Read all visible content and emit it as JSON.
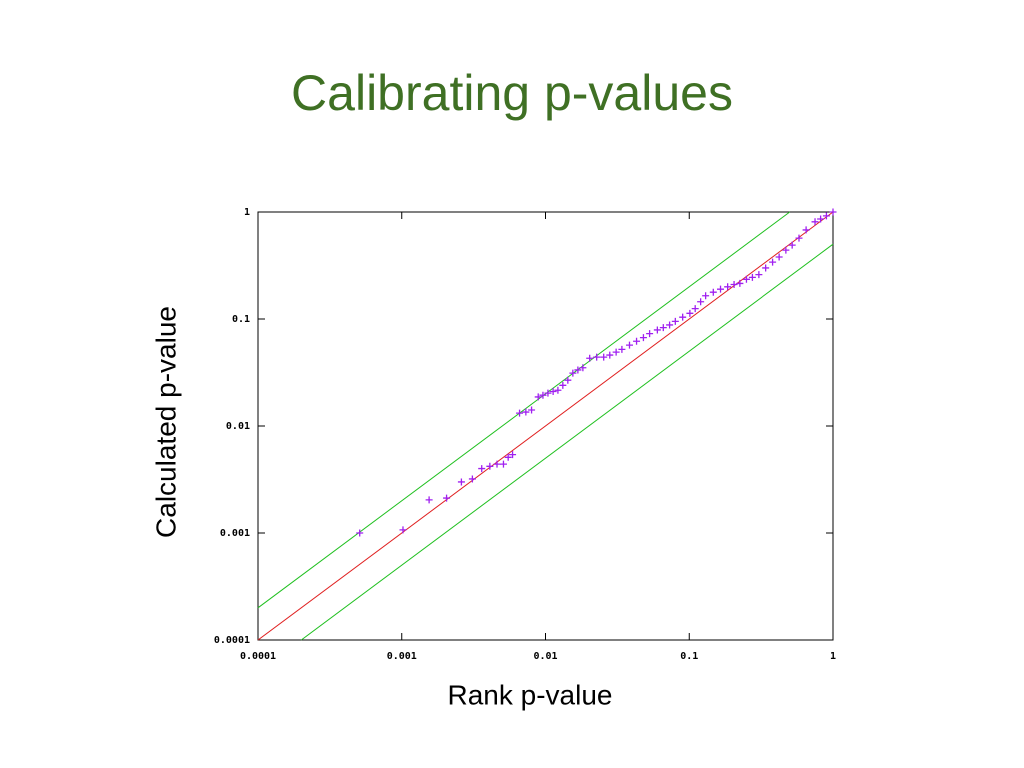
{
  "chart_data": {
    "type": "scatter",
    "title": "Calibrating p-values",
    "xlabel": "Rank p-value",
    "ylabel": "Calculated p-value",
    "log_x": true,
    "log_y": true,
    "xlim": [
      0.0001,
      1
    ],
    "ylim": [
      0.0001,
      1
    ],
    "xticks": [
      0.0001,
      0.001,
      0.01,
      0.1,
      1
    ],
    "yticks": [
      0.0001,
      0.001,
      0.01,
      0.1,
      1
    ],
    "reference_lines": [
      {
        "factor": 1,
        "color": "#e02020"
      },
      {
        "factor": 2,
        "color": "#20c020"
      },
      {
        "factor": 0.5,
        "color": "#20c020"
      }
    ],
    "series": [
      {
        "color": "#a020f0",
        "x": [
          0.00051,
          0.00102,
          0.00155,
          0.00205,
          0.0026,
          0.0031,
          0.0036,
          0.0041,
          0.0046,
          0.0051,
          0.0055,
          0.0059,
          0.0066,
          0.0073,
          0.008,
          0.0089,
          0.0096,
          0.0104,
          0.0113,
          0.0122,
          0.0132,
          0.0143,
          0.0155,
          0.0168,
          0.0182,
          0.0203,
          0.0227,
          0.0254,
          0.028,
          0.031,
          0.034,
          0.0384,
          0.043,
          0.048,
          0.053,
          0.06,
          0.066,
          0.073,
          0.08,
          0.09,
          0.101,
          0.11,
          0.12,
          0.13,
          0.147,
          0.165,
          0.185,
          0.205,
          0.225,
          0.25,
          0.275,
          0.305,
          0.34,
          0.38,
          0.422,
          0.47,
          0.52,
          0.58,
          0.65,
          0.75,
          0.82,
          0.9,
          1
        ],
        "values": [
          0.001,
          0.00107,
          0.00204,
          0.00212,
          0.003,
          0.0032,
          0.004,
          0.0042,
          0.0044,
          0.0044,
          0.0051,
          0.0054,
          0.0132,
          0.0135,
          0.0141,
          0.0187,
          0.0194,
          0.0203,
          0.021,
          0.0216,
          0.024,
          0.0268,
          0.0312,
          0.0334,
          0.035,
          0.043,
          0.044,
          0.044,
          0.046,
          0.049,
          0.052,
          0.057,
          0.062,
          0.067,
          0.073,
          0.079,
          0.083,
          0.088,
          0.095,
          0.104,
          0.113,
          0.125,
          0.145,
          0.165,
          0.178,
          0.19,
          0.2,
          0.21,
          0.215,
          0.235,
          0.245,
          0.26,
          0.3,
          0.34,
          0.38,
          0.44,
          0.49,
          0.57,
          0.68,
          0.81,
          0.86,
          0.92,
          1
        ]
      }
    ]
  }
}
